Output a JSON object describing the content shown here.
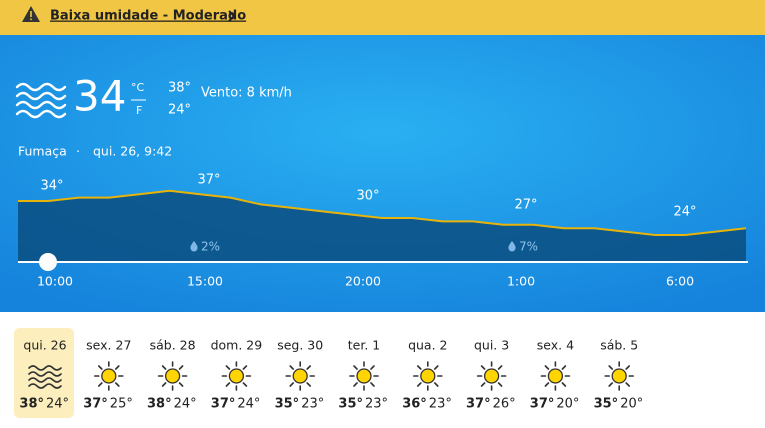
{
  "alert": {
    "text": "Baixa umidade - Moderado"
  },
  "current": {
    "temperature": "34",
    "units": [
      "°C",
      "F"
    ],
    "high": "38°",
    "low": "24°",
    "wind": "Vento: 8 km/h",
    "condition": "Fumaça",
    "datetime": "qui. 26, 9:42"
  },
  "hourly": {
    "temperature_curve": [
      34,
      34,
      35,
      35,
      36,
      37,
      36,
      35,
      33,
      32,
      31,
      30,
      29,
      29,
      28,
      28,
      27,
      27,
      26,
      26,
      25,
      24,
      24,
      25,
      26
    ],
    "temp_labels": [
      "34°",
      "37°",
      "30°",
      "27°",
      "24°"
    ],
    "precipitation": [
      "2%",
      "7%"
    ],
    "times": [
      "10:00",
      "15:00",
      "20:00",
      "1:00",
      "6:00"
    ]
  },
  "daily": [
    {
      "day": "qui. 26",
      "icon": "smoke",
      "high": "38°",
      "low": "24°"
    },
    {
      "day": "sex. 27",
      "icon": "sun",
      "high": "37°",
      "low": "25°"
    },
    {
      "day": "sáb. 28",
      "icon": "sun",
      "high": "38°",
      "low": "24°"
    },
    {
      "day": "dom. 29",
      "icon": "sun",
      "high": "37°",
      "low": "24°"
    },
    {
      "day": "seg. 30",
      "icon": "sun",
      "high": "35°",
      "low": "23°"
    },
    {
      "day": "ter. 1",
      "icon": "sun",
      "high": "35°",
      "low": "23°"
    },
    {
      "day": "qua. 2",
      "icon": "sun",
      "high": "36°",
      "low": "23°"
    },
    {
      "day": "qui. 3",
      "icon": "sun",
      "high": "37°",
      "low": "26°"
    },
    {
      "day": "sex. 4",
      "icon": "sun",
      "high": "37°",
      "low": "20°"
    },
    {
      "day": "sáb. 5",
      "icon": "sun",
      "high": "35°",
      "low": "20°"
    }
  ]
}
